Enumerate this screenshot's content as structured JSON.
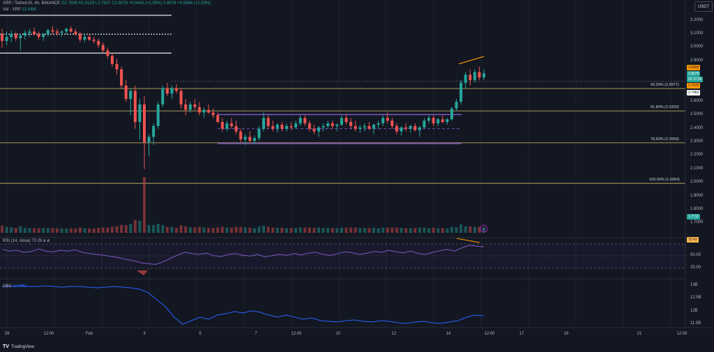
{
  "header": {
    "pair": "XRP / TetherUS, 4h, BINANCE",
    "ohlc": "O2.7638 H2.8129 L2.7637 C2.8078 +0.0440 (+1.59%) 2.8078 +0.0694 (+2.53%)",
    "vol_label": "Vol · XRP",
    "vol_value": "13.04M",
    "currency": "USDT"
  },
  "rsi": {
    "label": "RSI (14, close)",
    "value": "70.26",
    "extra": "ø ø",
    "tag": "75.43"
  },
  "obv": {
    "label": "OBV",
    "value": "11.88M"
  },
  "price_tags": {
    "p1": "2.8405",
    "p2": "2.8078",
    "p3": "02:37:26",
    "p4": "2.7970",
    "p5": "2.7464",
    "p6": "1.7711"
  },
  "branding": {
    "name": "TradingView",
    "mark": "TV"
  },
  "colors": {
    "up": "#26a69a",
    "down": "#ef5350",
    "fib": "#d4c46a",
    "range": "#7e57c2",
    "rsi": "#7e57c2",
    "obv": "#2962ff",
    "divergence": "#ff9800"
  },
  "chart_data": {
    "type": "candlestick",
    "x_ticks": [
      "29",
      "12:00",
      "Feb",
      "3",
      "5",
      "7",
      "12:00",
      "10",
      "12",
      "14",
      "12:00",
      "17",
      "19",
      "21",
      "12:00"
    ],
    "y_ticks": [
      "3.2000",
      "3.1000",
      "3.0000",
      "2.9000",
      "2.6000",
      "2.5000",
      "2.4000",
      "2.3000",
      "2.2000",
      "2.1000",
      "2.0000",
      "1.9000",
      "1.8000",
      "1.7000"
    ],
    "ylim": [
      1.65,
      3.25
    ],
    "rsi_ticks": [
      "50.00",
      "25.00"
    ],
    "obv_ticks": [
      "13B",
      "12.5B",
      "12B",
      "11.5B"
    ],
    "fib_levels": [
      {
        "label": "50.00% (2.6977)",
        "value": 2.6977
      },
      {
        "label": "61.80% (2.5320)",
        "value": 2.532
      },
      {
        "label": "78.60% (2.2960)",
        "value": 2.296
      },
      {
        "label": "100.00% (1.9954)",
        "value": 1.9954
      }
    ],
    "resistance_levels": [
      3.24,
      3.1,
      2.96
    ],
    "range_box": {
      "top": 2.505,
      "bottom": 2.29,
      "mid": 2.4
    },
    "candles": [
      [
        3.1,
        3.14,
        3.0,
        3.05
      ],
      [
        3.05,
        3.12,
        3.02,
        3.08
      ],
      [
        3.08,
        3.13,
        3.04,
        3.1
      ],
      [
        3.1,
        3.12,
        3.05,
        3.07
      ],
      [
        3.07,
        3.1,
        2.98,
        3.09
      ],
      [
        3.09,
        3.13,
        3.06,
        3.11
      ],
      [
        3.11,
        3.14,
        3.08,
        3.12
      ],
      [
        3.12,
        3.15,
        3.09,
        3.1
      ],
      [
        3.1,
        3.12,
        3.06,
        3.08
      ],
      [
        3.08,
        3.11,
        3.05,
        3.1
      ],
      [
        3.1,
        3.14,
        3.08,
        3.13
      ],
      [
        3.13,
        3.16,
        3.1,
        3.12
      ],
      [
        3.12,
        3.14,
        3.09,
        3.11
      ],
      [
        3.11,
        3.13,
        3.08,
        3.12
      ],
      [
        3.12,
        3.15,
        3.1,
        3.14
      ],
      [
        3.14,
        3.16,
        3.11,
        3.12
      ],
      [
        3.12,
        3.14,
        3.09,
        3.1
      ],
      [
        3.1,
        3.12,
        3.04,
        3.06
      ],
      [
        3.06,
        3.1,
        3.04,
        3.08
      ],
      [
        3.08,
        3.1,
        3.05,
        3.06
      ],
      [
        3.06,
        3.08,
        3.03,
        3.05
      ],
      [
        3.05,
        3.07,
        3.0,
        3.02
      ],
      [
        3.02,
        3.04,
        2.96,
        2.98
      ],
      [
        2.98,
        3.0,
        2.92,
        2.94
      ],
      [
        2.94,
        2.96,
        2.86,
        2.88
      ],
      [
        2.88,
        2.92,
        2.8,
        2.84
      ],
      [
        2.84,
        2.86,
        2.7,
        2.72
      ],
      [
        2.72,
        2.76,
        2.6,
        2.62
      ],
      [
        2.62,
        2.7,
        2.5,
        2.68
      ],
      [
        2.68,
        2.72,
        2.4,
        2.45
      ],
      [
        2.45,
        2.62,
        2.32,
        2.58
      ],
      [
        2.58,
        2.64,
        2.1,
        2.3
      ],
      [
        2.3,
        2.36,
        2.2,
        2.34
      ],
      [
        2.34,
        2.44,
        2.28,
        2.42
      ],
      [
        2.42,
        2.6,
        2.4,
        2.58
      ],
      [
        2.58,
        2.72,
        2.56,
        2.7
      ],
      [
        2.7,
        2.74,
        2.64,
        2.66
      ],
      [
        2.66,
        2.72,
        2.62,
        2.7
      ],
      [
        2.7,
        2.73,
        2.66,
        2.68
      ],
      [
        2.68,
        2.7,
        2.55,
        2.58
      ],
      [
        2.58,
        2.62,
        2.5,
        2.54
      ],
      [
        2.54,
        2.6,
        2.52,
        2.58
      ],
      [
        2.58,
        2.62,
        2.54,
        2.56
      ],
      [
        2.56,
        2.6,
        2.5,
        2.52
      ],
      [
        2.52,
        2.56,
        2.48,
        2.54
      ],
      [
        2.54,
        2.58,
        2.51,
        2.52
      ],
      [
        2.52,
        2.55,
        2.48,
        2.5
      ],
      [
        2.5,
        2.52,
        2.44,
        2.45
      ],
      [
        2.45,
        2.48,
        2.38,
        2.4
      ],
      [
        2.4,
        2.46,
        2.38,
        2.44
      ],
      [
        2.44,
        2.48,
        2.4,
        2.42
      ],
      [
        2.42,
        2.46,
        2.36,
        2.38
      ],
      [
        2.38,
        2.4,
        2.3,
        2.32
      ],
      [
        2.32,
        2.36,
        2.28,
        2.34
      ],
      [
        2.34,
        2.38,
        2.3,
        2.31
      ],
      [
        2.31,
        2.35,
        2.29,
        2.33
      ],
      [
        2.33,
        2.42,
        2.31,
        2.4
      ],
      [
        2.4,
        2.52,
        2.38,
        2.48
      ],
      [
        2.48,
        2.5,
        2.4,
        2.42
      ],
      [
        2.42,
        2.46,
        2.38,
        2.4
      ],
      [
        2.4,
        2.44,
        2.37,
        2.43
      ],
      [
        2.43,
        2.45,
        2.38,
        2.4
      ],
      [
        2.4,
        2.44,
        2.38,
        2.42
      ],
      [
        2.42,
        2.45,
        2.39,
        2.41
      ],
      [
        2.41,
        2.46,
        2.4,
        2.44
      ],
      [
        2.44,
        2.5,
        2.42,
        2.48
      ],
      [
        2.48,
        2.5,
        2.42,
        2.44
      ],
      [
        2.44,
        2.46,
        2.38,
        2.4
      ],
      [
        2.4,
        2.43,
        2.36,
        2.38
      ],
      [
        2.38,
        2.42,
        2.34,
        2.41
      ],
      [
        2.41,
        2.44,
        2.38,
        2.42
      ],
      [
        2.42,
        2.46,
        2.4,
        2.44
      ],
      [
        2.44,
        2.46,
        2.4,
        2.42
      ],
      [
        2.42,
        2.44,
        2.38,
        2.43
      ],
      [
        2.43,
        2.5,
        2.42,
        2.48
      ],
      [
        2.48,
        2.51,
        2.43,
        2.45
      ],
      [
        2.45,
        2.48,
        2.4,
        2.42
      ],
      [
        2.42,
        2.46,
        2.38,
        2.4
      ],
      [
        2.4,
        2.43,
        2.37,
        2.41
      ],
      [
        2.41,
        2.44,
        2.38,
        2.42
      ],
      [
        2.42,
        2.45,
        2.39,
        2.4
      ],
      [
        2.4,
        2.44,
        2.36,
        2.43
      ],
      [
        2.43,
        2.46,
        2.4,
        2.44
      ],
      [
        2.44,
        2.5,
        2.42,
        2.48
      ],
      [
        2.48,
        2.52,
        2.44,
        2.46
      ],
      [
        2.46,
        2.48,
        2.4,
        2.42
      ],
      [
        2.42,
        2.44,
        2.36,
        2.38
      ],
      [
        2.38,
        2.42,
        2.35,
        2.41
      ],
      [
        2.41,
        2.44,
        2.38,
        2.4
      ],
      [
        2.4,
        2.43,
        2.37,
        2.42
      ],
      [
        2.42,
        2.44,
        2.38,
        2.39
      ],
      [
        2.39,
        2.42,
        2.34,
        2.41
      ],
      [
        2.41,
        2.48,
        2.4,
        2.46
      ],
      [
        2.46,
        2.5,
        2.44,
        2.48
      ],
      [
        2.48,
        2.5,
        2.42,
        2.44
      ],
      [
        2.44,
        2.48,
        2.42,
        2.47
      ],
      [
        2.47,
        2.5,
        2.44,
        2.45
      ],
      [
        2.45,
        2.48,
        2.43,
        2.47
      ],
      [
        2.47,
        2.56,
        2.46,
        2.55
      ],
      [
        2.55,
        2.62,
        2.53,
        2.6
      ],
      [
        2.6,
        2.76,
        2.58,
        2.74
      ],
      [
        2.74,
        2.82,
        2.7,
        2.8
      ],
      [
        2.8,
        2.84,
        2.72,
        2.76
      ],
      [
        2.76,
        2.84,
        2.74,
        2.82
      ],
      [
        2.82,
        2.86,
        2.76,
        2.78
      ],
      [
        2.78,
        2.84,
        2.76,
        2.81
      ]
    ]
  }
}
